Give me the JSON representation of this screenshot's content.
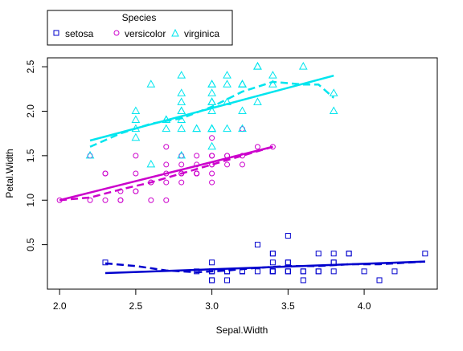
{
  "chart_data": {
    "type": "scatter",
    "xlabel": "Sepal.Width",
    "ylabel": "Petal.Width",
    "xlim": [
      1.92,
      4.48
    ],
    "ylim": [
      0.0,
      2.6
    ],
    "xticks": [
      "2.0",
      "2.5",
      "3.0",
      "3.5",
      "4.0"
    ],
    "yticks": [
      "0.5",
      "1.0",
      "1.5",
      "2.0",
      "2.5"
    ],
    "legend": {
      "title": "Species",
      "position": "top-left"
    },
    "series": [
      {
        "name": "setosa",
        "marker": "square",
        "color": "#0000CD",
        "points": [
          [
            3.5,
            0.2
          ],
          [
            3.0,
            0.2
          ],
          [
            3.2,
            0.2
          ],
          [
            3.1,
            0.2
          ],
          [
            3.6,
            0.2
          ],
          [
            3.9,
            0.4
          ],
          [
            3.4,
            0.3
          ],
          [
            3.4,
            0.2
          ],
          [
            2.9,
            0.2
          ],
          [
            3.1,
            0.1
          ],
          [
            3.7,
            0.2
          ],
          [
            3.4,
            0.2
          ],
          [
            3.0,
            0.1
          ],
          [
            3.0,
            0.1
          ],
          [
            4.0,
            0.2
          ],
          [
            4.4,
            0.4
          ],
          [
            3.9,
            0.4
          ],
          [
            3.5,
            0.3
          ],
          [
            3.8,
            0.3
          ],
          [
            3.8,
            0.3
          ],
          [
            3.4,
            0.2
          ],
          [
            3.7,
            0.4
          ],
          [
            3.6,
            0.2
          ],
          [
            3.3,
            0.5
          ],
          [
            3.4,
            0.2
          ],
          [
            3.0,
            0.2
          ],
          [
            3.4,
            0.4
          ],
          [
            3.5,
            0.2
          ],
          [
            3.4,
            0.2
          ],
          [
            3.2,
            0.2
          ],
          [
            3.1,
            0.2
          ],
          [
            3.4,
            0.4
          ],
          [
            4.1,
            0.1
          ],
          [
            4.2,
            0.2
          ],
          [
            3.1,
            0.2
          ],
          [
            3.2,
            0.2
          ],
          [
            3.5,
            0.2
          ],
          [
            3.6,
            0.1
          ],
          [
            3.0,
            0.2
          ],
          [
            3.4,
            0.2
          ],
          [
            3.5,
            0.3
          ],
          [
            2.3,
            0.3
          ],
          [
            3.2,
            0.2
          ],
          [
            3.5,
            0.6
          ],
          [
            3.8,
            0.4
          ],
          [
            3.0,
            0.3
          ],
          [
            3.8,
            0.2
          ],
          [
            3.2,
            0.2
          ],
          [
            3.7,
            0.2
          ],
          [
            3.3,
            0.2
          ]
        ],
        "fit_line": [
          [
            2.3,
            0.18
          ],
          [
            4.4,
            0.31
          ]
        ],
        "smooth_line": [
          [
            2.3,
            0.29
          ],
          [
            2.5,
            0.26
          ],
          [
            2.7,
            0.21
          ],
          [
            2.9,
            0.19
          ],
          [
            3.1,
            0.21
          ],
          [
            3.3,
            0.24
          ],
          [
            3.5,
            0.26
          ],
          [
            3.7,
            0.26
          ],
          [
            3.9,
            0.28
          ],
          [
            4.1,
            0.28
          ],
          [
            4.4,
            0.31
          ]
        ]
      },
      {
        "name": "versicolor",
        "marker": "circle",
        "color": "#CC00CC",
        "points": [
          [
            3.2,
            1.4
          ],
          [
            3.2,
            1.5
          ],
          [
            3.1,
            1.5
          ],
          [
            2.3,
            1.3
          ],
          [
            2.8,
            1.5
          ],
          [
            2.8,
            1.3
          ],
          [
            3.3,
            1.6
          ],
          [
            2.4,
            1.0
          ],
          [
            2.9,
            1.3
          ],
          [
            2.7,
            1.4
          ],
          [
            2.0,
            1.0
          ],
          [
            3.0,
            1.5
          ],
          [
            2.2,
            1.0
          ],
          [
            2.9,
            1.4
          ],
          [
            2.9,
            1.3
          ],
          [
            3.1,
            1.4
          ],
          [
            3.0,
            1.5
          ],
          [
            2.7,
            1.0
          ],
          [
            2.2,
            1.5
          ],
          [
            2.5,
            1.1
          ],
          [
            3.2,
            1.8
          ],
          [
            2.8,
            1.3
          ],
          [
            2.5,
            1.5
          ],
          [
            2.8,
            1.2
          ],
          [
            2.9,
            1.3
          ],
          [
            3.0,
            1.4
          ],
          [
            2.8,
            1.4
          ],
          [
            3.0,
            1.7
          ],
          [
            2.9,
            1.5
          ],
          [
            2.6,
            1.0
          ],
          [
            2.4,
            1.1
          ],
          [
            2.4,
            1.0
          ],
          [
            2.7,
            1.2
          ],
          [
            2.7,
            1.6
          ],
          [
            3.0,
            1.5
          ],
          [
            3.4,
            1.6
          ],
          [
            3.1,
            1.5
          ],
          [
            2.3,
            1.3
          ],
          [
            3.0,
            1.3
          ],
          [
            2.5,
            1.3
          ],
          [
            2.6,
            1.2
          ],
          [
            3.0,
            1.4
          ],
          [
            2.6,
            1.2
          ],
          [
            2.3,
            1.0
          ],
          [
            2.7,
            1.3
          ],
          [
            3.0,
            1.2
          ],
          [
            2.9,
            1.3
          ],
          [
            2.9,
            1.3
          ],
          [
            2.5,
            1.1
          ],
          [
            2.8,
            1.3
          ]
        ],
        "fit_line": [
          [
            2.0,
            1.0
          ],
          [
            3.4,
            1.6
          ]
        ],
        "smooth_line": [
          [
            2.0,
            1.0
          ],
          [
            2.2,
            1.03
          ],
          [
            2.4,
            1.12
          ],
          [
            2.6,
            1.2
          ],
          [
            2.8,
            1.3
          ],
          [
            3.0,
            1.4
          ],
          [
            3.2,
            1.5
          ],
          [
            3.4,
            1.6
          ]
        ]
      },
      {
        "name": "virginica",
        "marker": "triangle",
        "color": "#00E5EE",
        "points": [
          [
            3.3,
            2.5
          ],
          [
            2.7,
            1.9
          ],
          [
            3.0,
            2.1
          ],
          [
            2.9,
            1.8
          ],
          [
            3.0,
            2.2
          ],
          [
            3.0,
            2.1
          ],
          [
            2.5,
            1.7
          ],
          [
            2.9,
            1.8
          ],
          [
            2.5,
            1.8
          ],
          [
            3.6,
            2.5
          ],
          [
            3.2,
            2.0
          ],
          [
            2.7,
            1.9
          ],
          [
            3.0,
            2.1
          ],
          [
            2.5,
            2.0
          ],
          [
            2.8,
            2.4
          ],
          [
            3.2,
            2.3
          ],
          [
            3.0,
            1.8
          ],
          [
            3.8,
            2.2
          ],
          [
            2.6,
            2.3
          ],
          [
            2.2,
            1.5
          ],
          [
            3.2,
            2.3
          ],
          [
            2.8,
            2.0
          ],
          [
            2.8,
            2.0
          ],
          [
            2.7,
            1.8
          ],
          [
            3.3,
            2.1
          ],
          [
            3.2,
            1.8
          ],
          [
            2.8,
            1.8
          ],
          [
            3.0,
            1.8
          ],
          [
            2.8,
            2.1
          ],
          [
            3.0,
            1.6
          ],
          [
            2.8,
            1.9
          ],
          [
            3.8,
            2.0
          ],
          [
            2.8,
            2.2
          ],
          [
            2.8,
            1.5
          ],
          [
            2.6,
            1.4
          ],
          [
            3.0,
            2.3
          ],
          [
            3.4,
            2.4
          ],
          [
            3.1,
            1.8
          ],
          [
            3.0,
            1.8
          ],
          [
            3.1,
            2.1
          ],
          [
            3.1,
            2.4
          ],
          [
            3.1,
            2.3
          ],
          [
            2.7,
            1.9
          ],
          [
            3.2,
            2.3
          ],
          [
            3.3,
            2.5
          ],
          [
            3.0,
            2.3
          ],
          [
            2.5,
            1.9
          ],
          [
            3.0,
            2.0
          ],
          [
            3.4,
            2.3
          ],
          [
            3.0,
            1.8
          ]
        ],
        "fit_line": [
          [
            2.2,
            1.67
          ],
          [
            3.8,
            2.4
          ]
        ],
        "smooth_line": [
          [
            2.2,
            1.6
          ],
          [
            2.4,
            1.75
          ],
          [
            2.6,
            1.86
          ],
          [
            2.8,
            1.92
          ],
          [
            3.0,
            2.05
          ],
          [
            3.2,
            2.22
          ],
          [
            3.4,
            2.33
          ],
          [
            3.6,
            2.3
          ],
          [
            3.7,
            2.3
          ],
          [
            3.8,
            2.15
          ]
        ]
      }
    ]
  }
}
